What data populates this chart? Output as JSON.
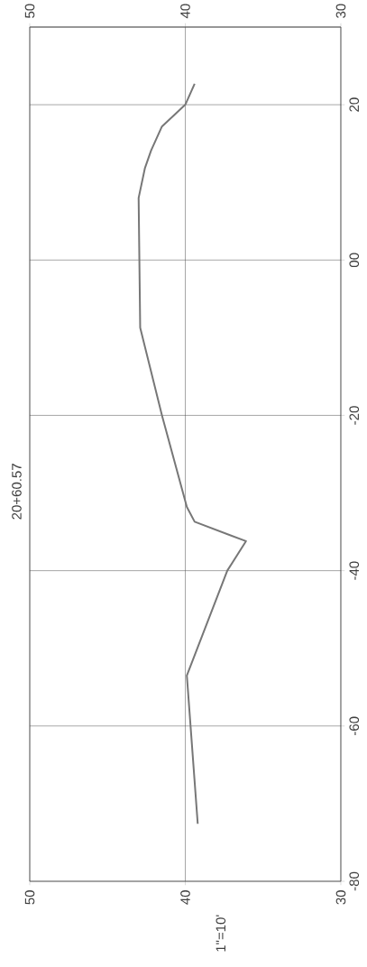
{
  "chart_data": {
    "type": "line",
    "title": "20+60.57",
    "annotations": [
      "1\"=10'"
    ],
    "x": [
      39.2,
      39.9,
      37.3,
      36.1,
      39.4,
      39.9,
      41.5,
      42.9,
      43.0,
      42.6,
      42.2,
      41.5,
      40.0,
      39.4
    ],
    "series": [
      {
        "color": "#777777",
        "axis": "y2",
        "values": [
          -72.6,
          -53.5,
          -40,
          -36.2,
          -33.7,
          -31.8,
          -20,
          -8.7,
          8,
          11.8,
          14.1,
          17.2,
          20,
          22.7
        ]
      }
    ],
    "xlim": [
      50,
      30
    ],
    "xticks": [
      50,
      40,
      30
    ],
    "x2lim": [
      50,
      30
    ],
    "x2ticks": [
      50,
      40,
      30
    ],
    "y2lim": [
      -80,
      30
    ],
    "y2ticks": [
      -80,
      -60,
      -40,
      -20,
      {
        "value": 0,
        "label": "00"
      },
      20
    ],
    "grid": true
  }
}
